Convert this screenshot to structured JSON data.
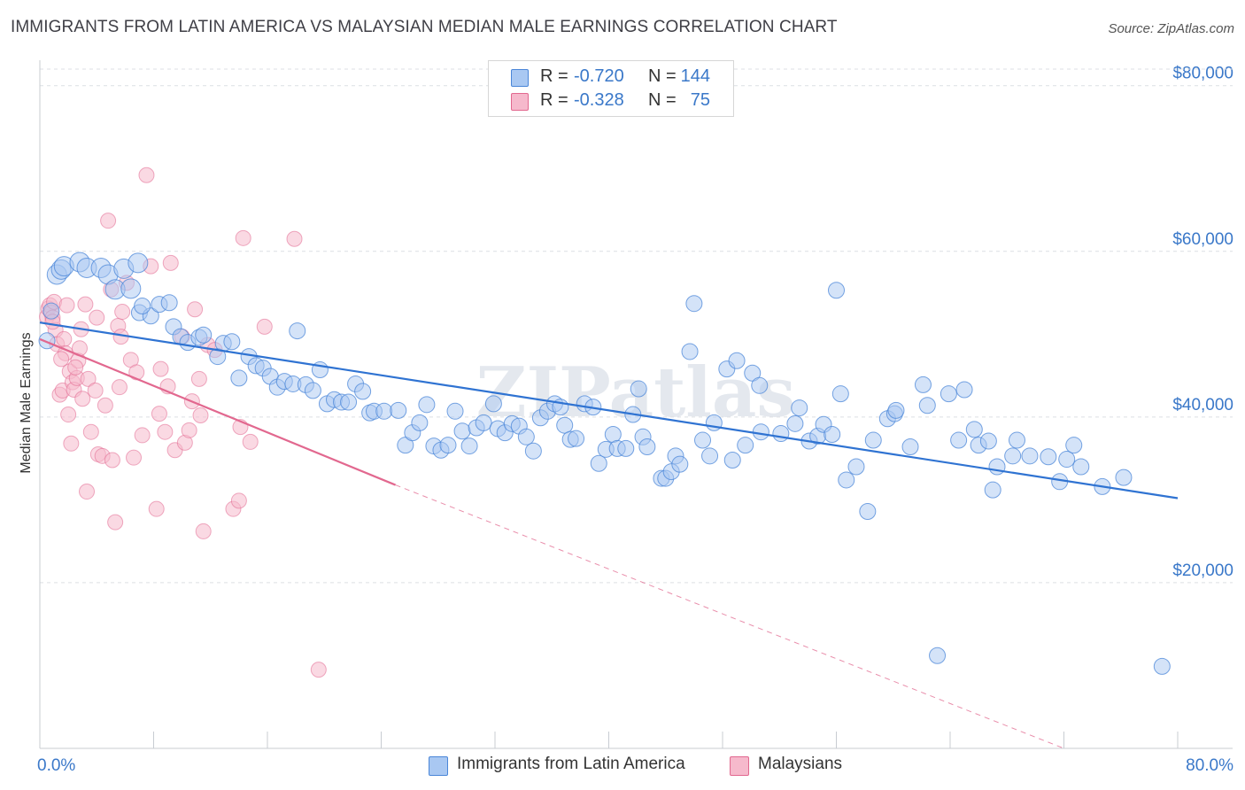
{
  "title": "IMMIGRANTS FROM LATIN AMERICA VS MALAYSIAN MEDIAN MALE EARNINGS CORRELATION CHART",
  "source": "Source: ZipAtlas.com",
  "watermark": "ZIPatlas",
  "legend_stats": [
    {
      "r_label": "R =",
      "r_value": "-0.720",
      "n_label": "N =",
      "n_value": "144",
      "color": "#a9c8f2"
    },
    {
      "r_label": "R =",
      "r_value": "-0.328",
      "n_label": "N =",
      "n_value": "75",
      "color": "#f6b9cc"
    }
  ],
  "bottom_legend": [
    {
      "label": "Immigrants from Latin America",
      "color": "#a9c8f2"
    },
    {
      "label": "Malaysians",
      "color": "#f6b9cc"
    }
  ],
  "chart_data": {
    "type": "scatter",
    "title": "IMMIGRANTS FROM LATIN AMERICA VS MALAYSIAN MEDIAN MALE EARNINGS CORRELATION CHART",
    "xlabel": "",
    "ylabel": "Median Male Earnings",
    "xlim": [
      0,
      80
    ],
    "ylim": [
      0,
      82000
    ],
    "x_tick_labels": [
      "0.0%",
      "80.0%"
    ],
    "y_ticks": [
      20000,
      40000,
      60000,
      80000
    ],
    "y_tick_labels": [
      "$20,000",
      "$40,000",
      "$60,000",
      "$80,000"
    ],
    "grid": "horizontal dashed",
    "legend_position": "top-center",
    "colors": {
      "blue": "#4a86d8",
      "blue_fill": "#a9c8f2",
      "pink": "#e2688f",
      "pink_fill": "#f6b9cc",
      "axis_text": "#3a78c9"
    },
    "series": [
      {
        "name": "Immigrants from Latin America",
        "color": "#4a86d8",
        "points": [
          [
            0.5,
            49200
          ],
          [
            0.8,
            52800
          ],
          [
            1.2,
            57200
          ],
          [
            1.5,
            57800
          ],
          [
            1.7,
            58200
          ],
          [
            2.8,
            58700
          ],
          [
            3.3,
            58000
          ],
          [
            4.3,
            58000
          ],
          [
            4.8,
            57200
          ],
          [
            5.9,
            57900
          ],
          [
            5.3,
            55400
          ],
          [
            6.4,
            55500
          ],
          [
            6.9,
            58600
          ],
          [
            7.0,
            52600
          ],
          [
            7.8,
            52200
          ],
          [
            7.2,
            53400
          ],
          [
            8.4,
            53600
          ],
          [
            9.1,
            53800
          ],
          [
            9.4,
            50900
          ],
          [
            9.9,
            49700
          ],
          [
            10.4,
            49000
          ],
          [
            11.2,
            49600
          ],
          [
            11.5,
            49900
          ],
          [
            12.5,
            47300
          ],
          [
            12.9,
            48900
          ],
          [
            13.5,
            49100
          ],
          [
            14.0,
            44700
          ],
          [
            14.7,
            47300
          ],
          [
            15.2,
            46200
          ],
          [
            15.7,
            45900
          ],
          [
            16.2,
            44900
          ],
          [
            16.7,
            43600
          ],
          [
            17.2,
            44300
          ],
          [
            17.8,
            44000
          ],
          [
            18.1,
            50400
          ],
          [
            18.7,
            43900
          ],
          [
            19.2,
            43200
          ],
          [
            19.7,
            45700
          ],
          [
            20.2,
            41600
          ],
          [
            20.7,
            42100
          ],
          [
            21.2,
            41800
          ],
          [
            21.7,
            41800
          ],
          [
            22.2,
            44000
          ],
          [
            22.7,
            43100
          ],
          [
            23.2,
            40500
          ],
          [
            23.5,
            40700
          ],
          [
            24.2,
            40700
          ],
          [
            25.2,
            40800
          ],
          [
            25.7,
            36600
          ],
          [
            26.2,
            38100
          ],
          [
            26.7,
            39300
          ],
          [
            27.2,
            41500
          ],
          [
            27.7,
            36500
          ],
          [
            28.2,
            36000
          ],
          [
            28.7,
            36600
          ],
          [
            29.2,
            40700
          ],
          [
            29.7,
            38300
          ],
          [
            30.2,
            36500
          ],
          [
            30.7,
            38700
          ],
          [
            31.2,
            39300
          ],
          [
            31.9,
            41600
          ],
          [
            32.2,
            38600
          ],
          [
            32.7,
            38100
          ],
          [
            33.2,
            39200
          ],
          [
            33.7,
            38900
          ],
          [
            34.2,
            37600
          ],
          [
            34.7,
            35900
          ],
          [
            35.2,
            39900
          ],
          [
            35.7,
            40700
          ],
          [
            36.2,
            41600
          ],
          [
            36.6,
            41200
          ],
          [
            36.9,
            39000
          ],
          [
            37.3,
            37300
          ],
          [
            37.7,
            37400
          ],
          [
            38.3,
            41600
          ],
          [
            38.9,
            41200
          ],
          [
            39.3,
            34400
          ],
          [
            39.8,
            36100
          ],
          [
            40.3,
            37900
          ],
          [
            40.6,
            36200
          ],
          [
            41.2,
            36200
          ],
          [
            41.7,
            40300
          ],
          [
            42.1,
            43400
          ],
          [
            42.4,
            37600
          ],
          [
            42.7,
            36400
          ],
          [
            43.7,
            32600
          ],
          [
            44.0,
            32600
          ],
          [
            44.4,
            33400
          ],
          [
            44.7,
            35300
          ],
          [
            45.0,
            34300
          ],
          [
            45.7,
            47900
          ],
          [
            46.0,
            53700
          ],
          [
            46.6,
            37200
          ],
          [
            47.1,
            35300
          ],
          [
            47.4,
            39300
          ],
          [
            48.3,
            45800
          ],
          [
            48.7,
            34800
          ],
          [
            49.0,
            46800
          ],
          [
            49.6,
            36600
          ],
          [
            50.1,
            45300
          ],
          [
            50.7,
            38200
          ],
          [
            50.6,
            43800
          ],
          [
            52.1,
            38000
          ],
          [
            53.1,
            39200
          ],
          [
            53.4,
            41100
          ],
          [
            54.1,
            37100
          ],
          [
            54.7,
            37700
          ],
          [
            55.1,
            39100
          ],
          [
            55.7,
            37900
          ],
          [
            56.0,
            55300
          ],
          [
            56.3,
            42800
          ],
          [
            56.7,
            32400
          ],
          [
            57.4,
            34000
          ],
          [
            58.2,
            28600
          ],
          [
            58.6,
            37200
          ],
          [
            59.6,
            39800
          ],
          [
            60.1,
            40400
          ],
          [
            60.2,
            40800
          ],
          [
            61.2,
            36400
          ],
          [
            62.1,
            43900
          ],
          [
            62.4,
            41400
          ],
          [
            63.9,
            42800
          ],
          [
            64.6,
            37200
          ],
          [
            65.0,
            43300
          ],
          [
            65.7,
            38500
          ],
          [
            66.0,
            36600
          ],
          [
            66.7,
            37100
          ],
          [
            67.0,
            31200
          ],
          [
            67.3,
            34000
          ],
          [
            68.4,
            35300
          ],
          [
            68.7,
            37200
          ],
          [
            69.6,
            35300
          ],
          [
            70.9,
            35200
          ],
          [
            71.7,
            32200
          ],
          [
            72.2,
            34900
          ],
          [
            72.7,
            36600
          ],
          [
            73.2,
            34000
          ],
          [
            74.7,
            31600
          ],
          [
            76.2,
            32700
          ],
          [
            63.1,
            11200
          ],
          [
            78.9,
            9900
          ]
        ],
        "trend": {
          "x1": 0.0,
          "y1": 51400,
          "x2": 80.0,
          "y2": 30200
        }
      },
      {
        "name": "Malaysians",
        "color": "#e2688f",
        "points": [
          [
            0.5,
            52100
          ],
          [
            0.6,
            53100
          ],
          [
            0.7,
            53500
          ],
          [
            0.8,
            52600
          ],
          [
            0.9,
            52000
          ],
          [
            1.0,
            53900
          ],
          [
            1.1,
            50500
          ],
          [
            1.2,
            48800
          ],
          [
            1.4,
            42700
          ],
          [
            1.6,
            43200
          ],
          [
            1.7,
            49400
          ],
          [
            1.8,
            47700
          ],
          [
            1.9,
            53500
          ],
          [
            2.0,
            40300
          ],
          [
            2.1,
            45500
          ],
          [
            2.3,
            44200
          ],
          [
            2.4,
            43300
          ],
          [
            2.6,
            44700
          ],
          [
            2.7,
            46800
          ],
          [
            2.8,
            48300
          ],
          [
            2.9,
            50600
          ],
          [
            3.0,
            42200
          ],
          [
            3.2,
            53600
          ],
          [
            3.4,
            44600
          ],
          [
            3.6,
            38200
          ],
          [
            3.9,
            43200
          ],
          [
            4.1,
            35500
          ],
          [
            4.4,
            35300
          ],
          [
            4.6,
            41400
          ],
          [
            4.8,
            63700
          ],
          [
            5.0,
            55400
          ],
          [
            5.1,
            34800
          ],
          [
            5.3,
            27300
          ],
          [
            5.5,
            51000
          ],
          [
            5.6,
            43600
          ],
          [
            5.7,
            49700
          ],
          [
            5.8,
            52700
          ],
          [
            6.1,
            56200
          ],
          [
            6.4,
            46900
          ],
          [
            6.6,
            35100
          ],
          [
            6.8,
            45400
          ],
          [
            7.2,
            37800
          ],
          [
            7.5,
            69200
          ],
          [
            7.8,
            58200
          ],
          [
            8.2,
            28900
          ],
          [
            8.4,
            40400
          ],
          [
            8.5,
            45800
          ],
          [
            8.8,
            38200
          ],
          [
            9.0,
            43700
          ],
          [
            9.2,
            58600
          ],
          [
            9.5,
            36000
          ],
          [
            10.0,
            49700
          ],
          [
            10.2,
            36900
          ],
          [
            10.5,
            38400
          ],
          [
            10.7,
            41900
          ],
          [
            10.9,
            53000
          ],
          [
            11.2,
            44600
          ],
          [
            11.3,
            40200
          ],
          [
            11.5,
            26200
          ],
          [
            11.8,
            48700
          ],
          [
            12.3,
            48100
          ],
          [
            13.6,
            28900
          ],
          [
            14.0,
            29900
          ],
          [
            14.1,
            38800
          ],
          [
            14.3,
            61600
          ],
          [
            14.8,
            37000
          ],
          [
            15.8,
            50900
          ],
          [
            17.9,
            61500
          ],
          [
            19.6,
            9500
          ],
          [
            3.3,
            31000
          ],
          [
            2.2,
            36800
          ],
          [
            4.0,
            52000
          ],
          [
            1.5,
            47000
          ],
          [
            2.5,
            46000
          ],
          [
            0.9,
            51500
          ]
        ],
        "trend": {
          "x1": 0.0,
          "y1": 49400,
          "x2": 25.0,
          "y2": 31800
        },
        "trend_extension": {
          "x1": 25.0,
          "y1": 31800,
          "x2": 72.0,
          "y2": 0
        }
      }
    ]
  }
}
